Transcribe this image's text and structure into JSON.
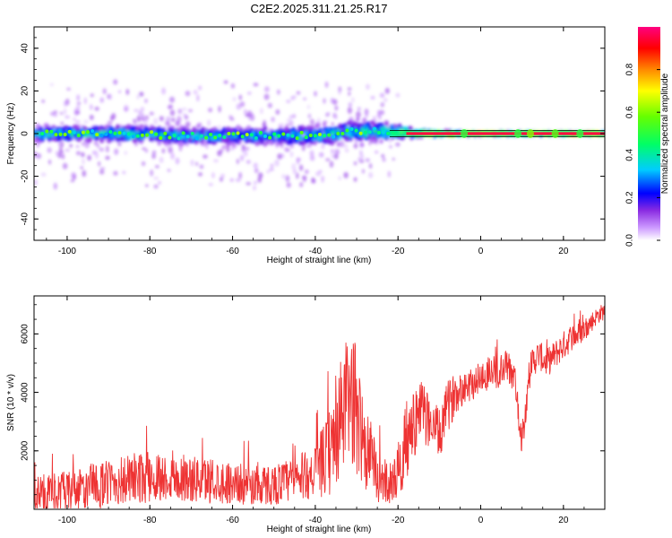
{
  "title": "C2E2.2025.311.21.25.R17",
  "chart_data": [
    {
      "type": "heatmap",
      "name": "spectrogram",
      "xlabel": "Height of straight line (km)",
      "ylabel": "Frequency (Hz)",
      "xlim": [
        -108,
        30
      ],
      "ylim": [
        -50,
        50
      ],
      "xticks": [
        -100,
        -80,
        -60,
        -40,
        -20,
        0,
        20
      ],
      "yticks": [
        -40,
        -20,
        0,
        20,
        40
      ],
      "colorbar": {
        "label": "Normalized spectral amplitude",
        "range": [
          0,
          1
        ],
        "ticks": [
          0.0,
          0.2,
          0.4,
          0.6,
          0.8
        ],
        "tick_labels": [
          "0.0",
          "0.2",
          "0.4",
          "0.6",
          "0.8"
        ]
      },
      "ridge": {
        "description": "main energy ridge centered near 0 Hz",
        "points": [
          {
            "x": -108,
            "freq": 0,
            "spread": 5,
            "amp": 0.4
          },
          {
            "x": -90,
            "freq": 0,
            "spread": 5,
            "amp": 0.45
          },
          {
            "x": -70,
            "freq": -1,
            "spread": 5,
            "amp": 0.4
          },
          {
            "x": -55,
            "freq": -1,
            "spread": 5,
            "amp": 0.4
          },
          {
            "x": -40,
            "freq": -1,
            "spread": 6,
            "amp": 0.4
          },
          {
            "x": -30,
            "freq": 1,
            "spread": 7,
            "amp": 0.45
          },
          {
            "x": -22,
            "freq": 1,
            "spread": 5,
            "amp": 0.5
          },
          {
            "x": -15,
            "freq": 0,
            "spread": 2,
            "amp": 0.8
          },
          {
            "x": 0,
            "freq": 0,
            "spread": 1,
            "amp": 0.95
          },
          {
            "x": 30,
            "freq": 0,
            "spread": 1,
            "amp": 0.95
          }
        ]
      }
    },
    {
      "type": "line",
      "name": "snr",
      "xlabel": "Height of straight line (km)",
      "ylabel": "SNR (10 * v/v)",
      "xlim": [
        -108,
        30
      ],
      "ylim": [
        0,
        7300
      ],
      "xticks": [
        -100,
        -80,
        -60,
        -40,
        -20,
        0,
        20
      ],
      "yticks": [
        2000,
        4000,
        6000
      ],
      "color": "#ee3333",
      "series": [
        {
          "name": "SNR",
          "x": [
            -108,
            -100,
            -95,
            -90,
            -85,
            -80,
            -75,
            -70,
            -65,
            -60,
            -55,
            -50,
            -45,
            -40,
            -36,
            -33,
            -31,
            -29,
            -27,
            -25,
            -22,
            -20,
            -18,
            -16,
            -14,
            -12,
            -10,
            -8,
            -6,
            -4,
            -2,
            0,
            2,
            4,
            6,
            8,
            10,
            12,
            14,
            16,
            18,
            20,
            22,
            24,
            26,
            28,
            30
          ],
          "values": [
            500,
            600,
            700,
            900,
            1000,
            1100,
            1100,
            1000,
            1000,
            900,
            800,
            850,
            1000,
            1300,
            2000,
            3500,
            3800,
            2800,
            1800,
            1100,
            900,
            1200,
            2300,
            3000,
            3300,
            3000,
            2500,
            3500,
            4000,
            4200,
            4300,
            4500,
            4700,
            4600,
            4900,
            4600,
            2400,
            4900,
            5300,
            5000,
            5300,
            5600,
            5900,
            6000,
            6300,
            6600,
            6800
          ],
          "noise": [
            700,
            700,
            800,
            800,
            900,
            900,
            800,
            800,
            800,
            700,
            700,
            700,
            800,
            900,
            1600,
            2200,
            2400,
            2000,
            1400,
            900,
            700,
            900,
            1400,
            1200,
            1100,
            900,
            900,
            900,
            700,
            600,
            600,
            600,
            600,
            600,
            600,
            600,
            600,
            600,
            500,
            500,
            500,
            500,
            500,
            400,
            400,
            300,
            300
          ]
        }
      ]
    }
  ]
}
